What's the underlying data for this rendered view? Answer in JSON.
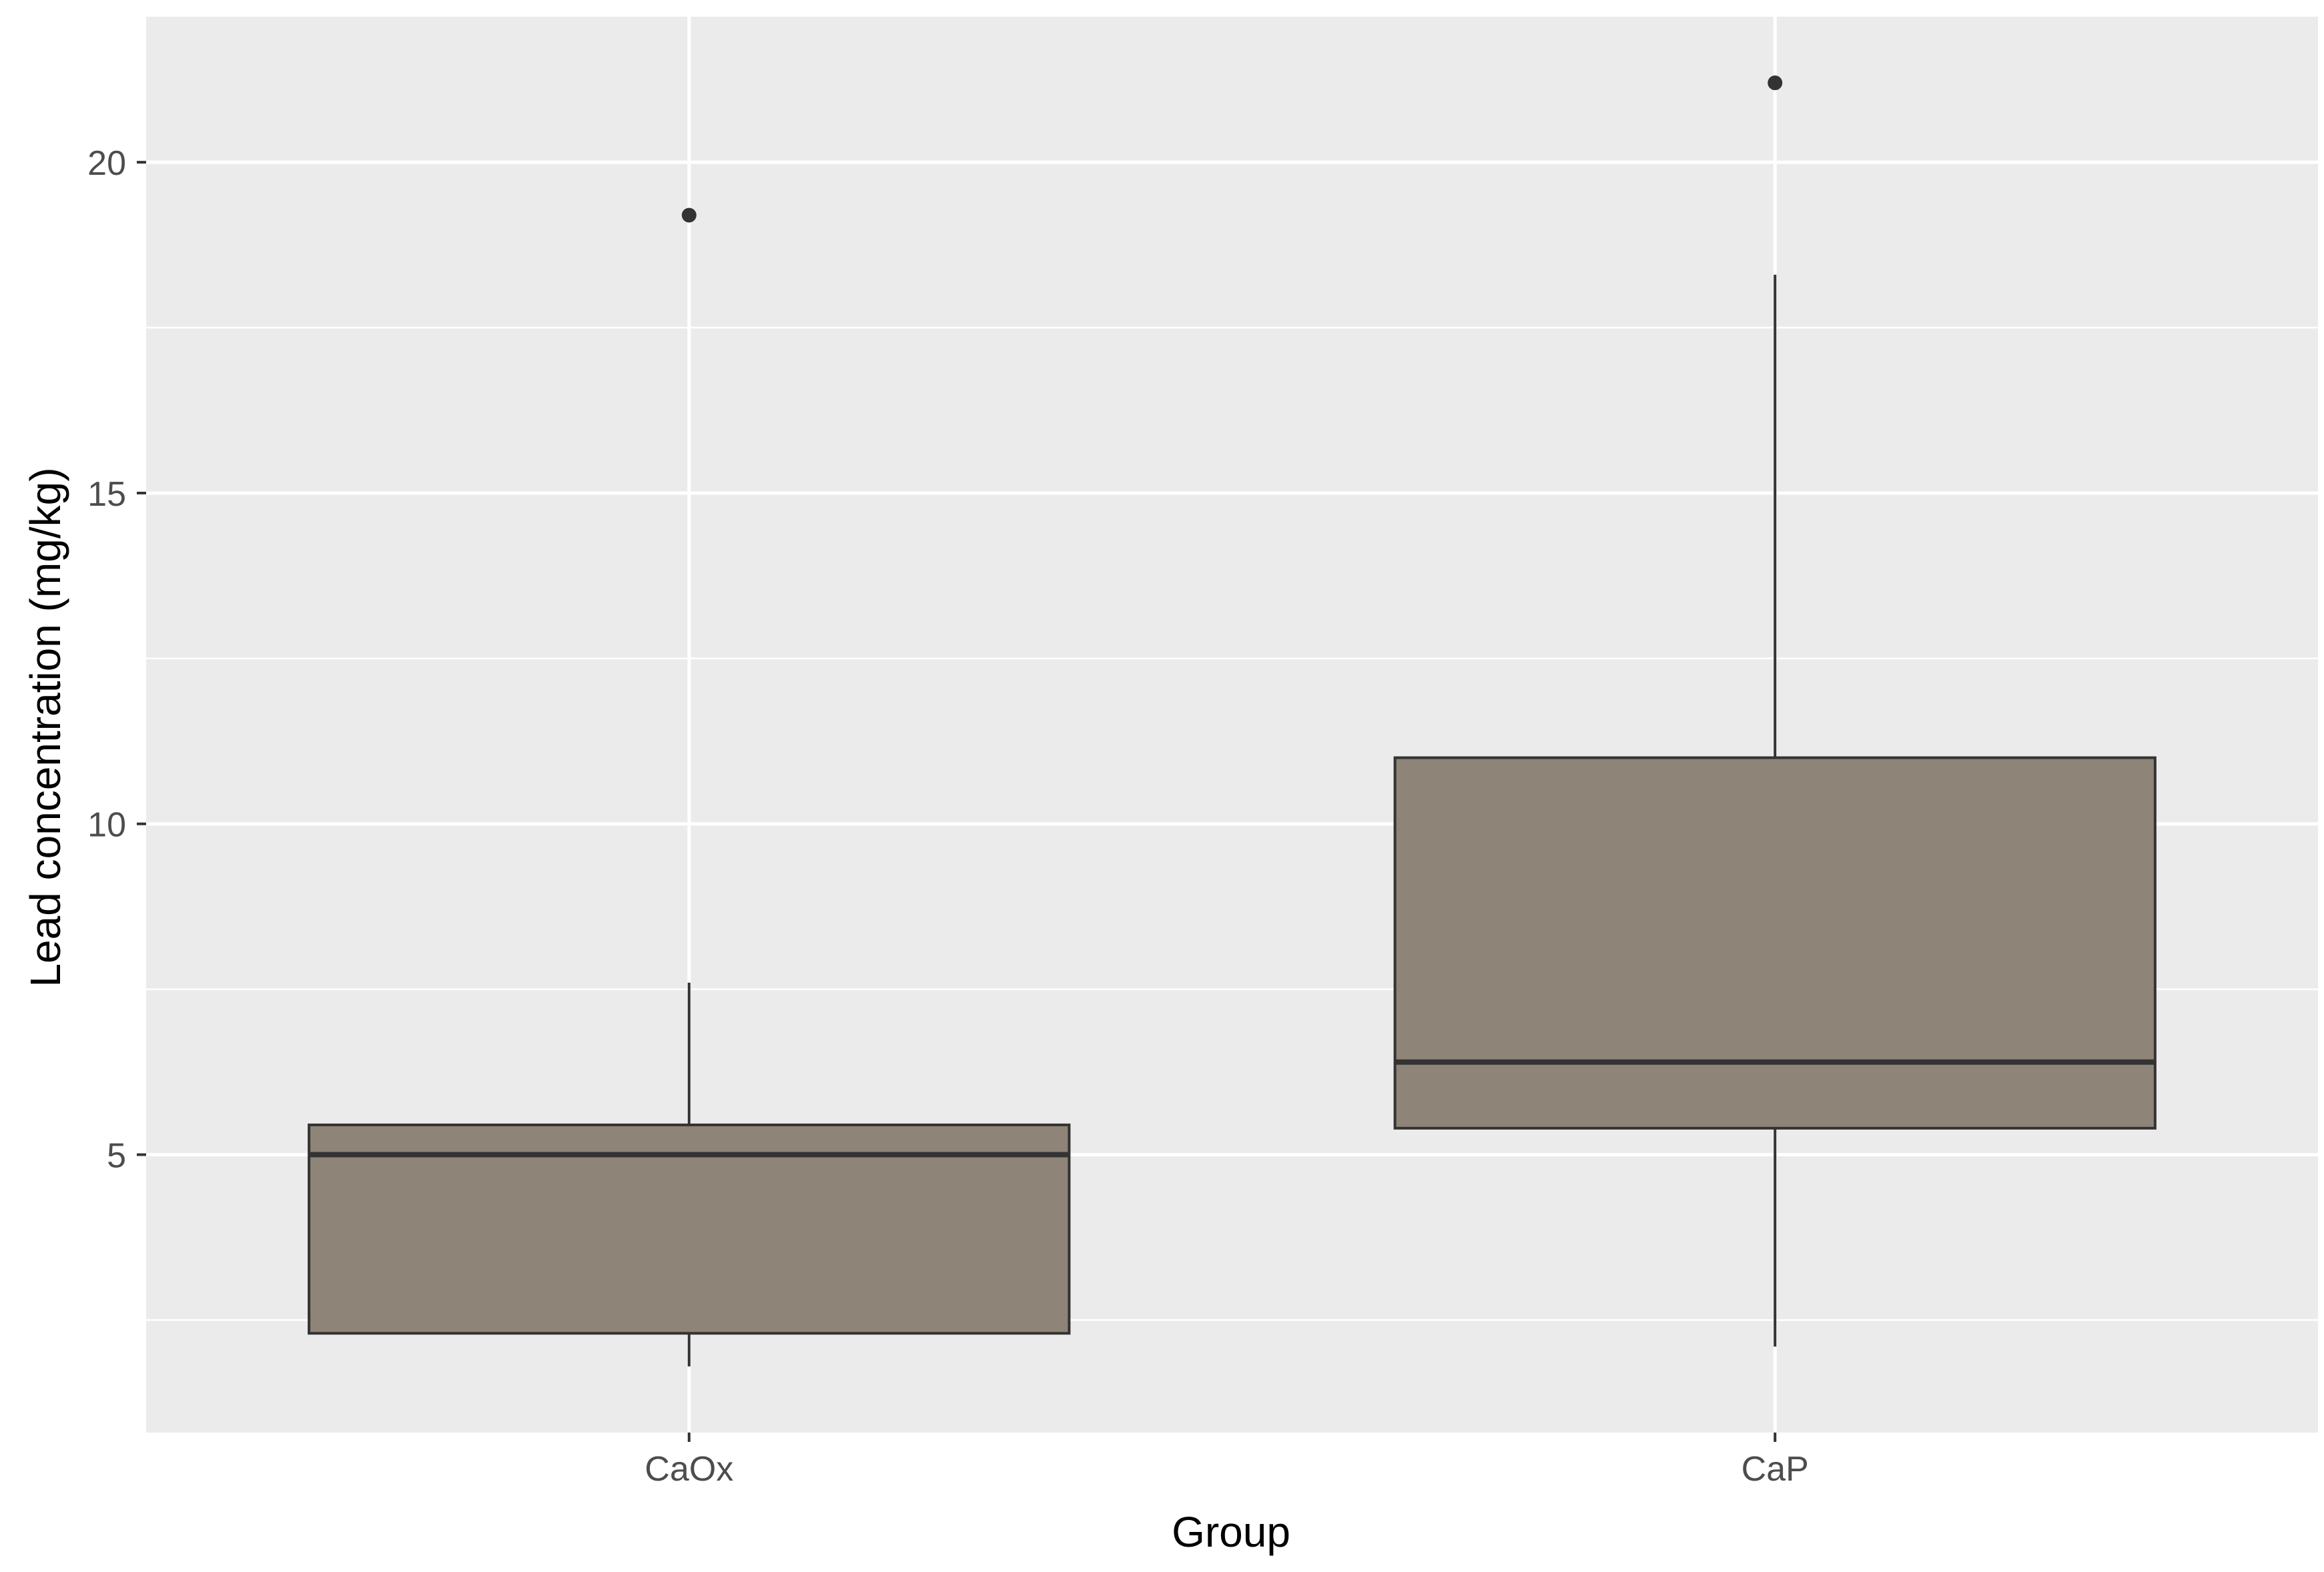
{
  "chart_data": {
    "type": "boxplot",
    "xlabel": "Group",
    "ylabel": "Lead concentration (mg/kg)",
    "categories": [
      "CaOx",
      "CaP"
    ],
    "boxes": [
      {
        "name": "CaOx",
        "whisker_low": 1.8,
        "q1": 2.3,
        "median": 5.0,
        "q3": 5.45,
        "whisker_high": 7.6,
        "outliers": [
          19.2
        ]
      },
      {
        "name": "CaP",
        "whisker_low": 2.1,
        "q1": 5.4,
        "median": 6.4,
        "q3": 11.0,
        "whisker_high": 18.3,
        "outliers": [
          21.2
        ]
      }
    ],
    "ylim": [
      0.8,
      22.2
    ],
    "yticks": [
      5,
      10,
      15,
      20
    ],
    "ytick_labels": [
      "5",
      "10",
      "15",
      "20"
    ],
    "grid": true,
    "colors": {
      "panel": "#ebebeb",
      "grid": "#ffffff",
      "box_fill": "#8e8477",
      "box_line": "#333333",
      "outlier": "#333333"
    }
  }
}
